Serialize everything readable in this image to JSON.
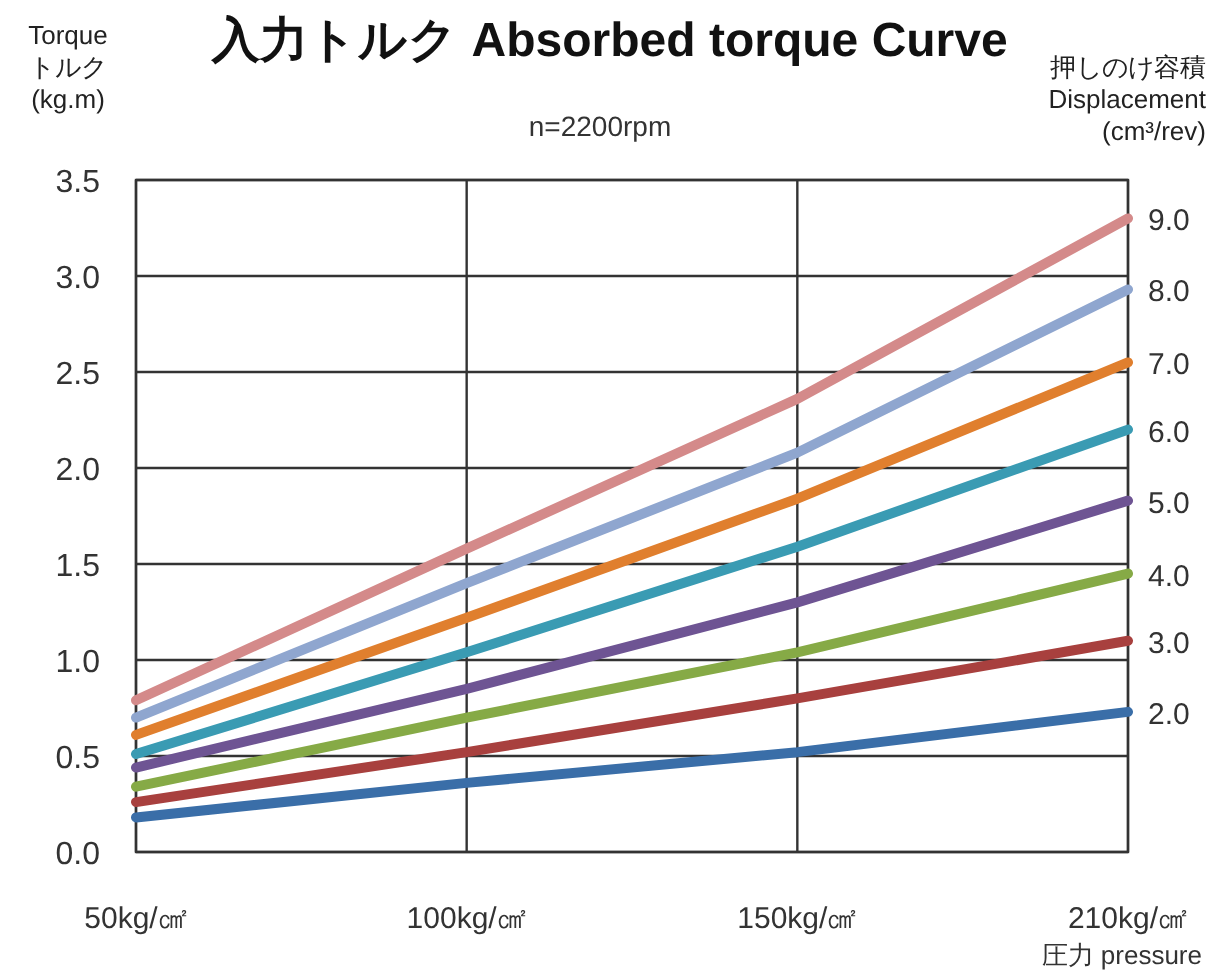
{
  "chart_data": {
    "type": "line",
    "title": "入力トルク  Absorbed torque Curve",
    "subtitle": "n=2200rpm",
    "ylabel": "Torque トルク (kg.m)",
    "legend_title": "押しのけ容積 Displacement (cm³/rev)",
    "xlabel": "圧力 pressure",
    "categories": [
      "50kg/㎠",
      "100kg/㎠",
      "150kg/㎠",
      "210kg/㎠"
    ],
    "ylim": [
      0,
      3.5
    ],
    "yticks": [
      {
        "value": 0,
        "label": "0.0"
      },
      {
        "value": 0.5,
        "label": "0.5"
      },
      {
        "value": 1,
        "label": "1.0"
      },
      {
        "value": 1.5,
        "label": "1.5"
      },
      {
        "value": 2,
        "label": "2.0"
      },
      {
        "value": 2.5,
        "label": "2.5"
      },
      {
        "value": 3,
        "label": "3.0"
      },
      {
        "value": 3.5,
        "label": "3.5"
      }
    ],
    "grid": true,
    "legend": false,
    "marker": "none",
    "line_style": "solid",
    "series": [
      {
        "name": "9.0",
        "color": "#d48a8a",
        "values": [
          0.79,
          1.58,
          2.36,
          3.3
        ]
      },
      {
        "name": "8.0",
        "color": "#8fa6cf",
        "values": [
          0.7,
          1.4,
          2.08,
          2.93
        ]
      },
      {
        "name": "7.0",
        "color": "#e07f2e",
        "values": [
          0.61,
          1.22,
          1.84,
          2.55
        ]
      },
      {
        "name": "6.0",
        "color": "#3a9bb3",
        "values": [
          0.51,
          1.04,
          1.59,
          2.2
        ]
      },
      {
        "name": "5.0",
        "color": "#6e5493",
        "values": [
          0.44,
          0.85,
          1.3,
          1.83
        ]
      },
      {
        "name": "4.0",
        "color": "#86aa46",
        "values": [
          0.34,
          0.7,
          1.04,
          1.45
        ]
      },
      {
        "name": "3.0",
        "color": "#a8403e",
        "values": [
          0.26,
          0.52,
          0.8,
          1.1
        ]
      },
      {
        "name": "2.0",
        "color": "#3a6ea8",
        "values": [
          0.18,
          0.36,
          0.52,
          0.73
        ]
      }
    ]
  }
}
